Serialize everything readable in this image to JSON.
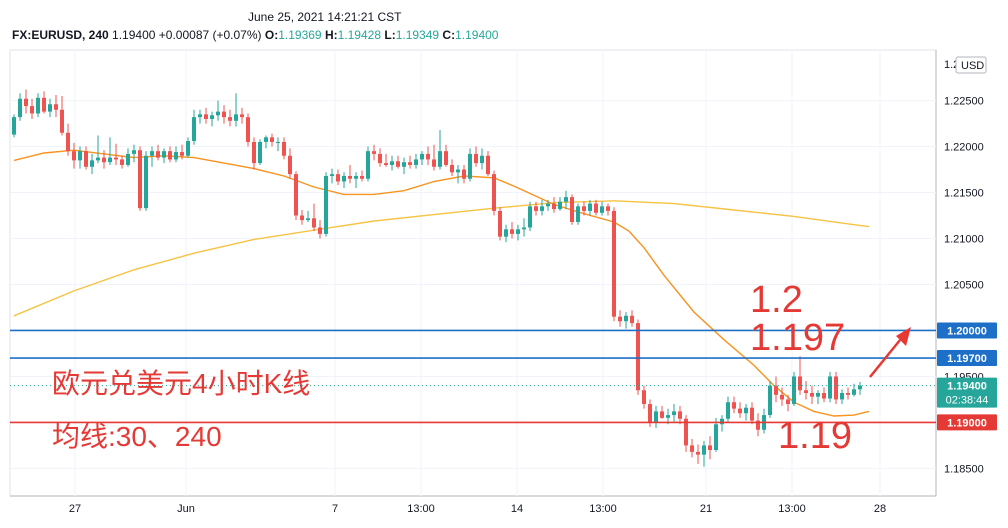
{
  "header": {
    "timestamp": "June 25, 2021 14:21:21 CST",
    "symbol": "FX:EURUSD, 240",
    "last": "1.19400",
    "change": "+0.00087 (+0.07%)",
    "o_label": "O:",
    "o_value": "1.19369",
    "h_label": "H:",
    "h_value": "1.19428",
    "l_label": "L:",
    "l_value": "1.19349",
    "c_label": "C:",
    "c_value": "1.19400"
  },
  "currency": "USD",
  "countdown": "02:38:44",
  "colors": {
    "up": "#26a69a",
    "down": "#ef5350",
    "ma30": "#f7931e",
    "ma240": "#f6c343",
    "blue_line": "#1e6fc8",
    "red_line": "#e53935",
    "annotation": "#e53935"
  },
  "annotations": {
    "title": "欧元兑美元4小时K线",
    "ma_note": "均线:30、240",
    "level_high": "1.2",
    "level_mid": "1.197",
    "level_low": "1.19"
  },
  "chart_data": {
    "type": "candlestick",
    "ylim": [
      1.182,
      1.2305
    ],
    "x_ticks": [
      "27",
      "Jun",
      "7",
      "13:00",
      "14",
      "13:00",
      "21",
      "13:00",
      "28"
    ],
    "y_ticks": [
      "1.22500",
      "1.22000",
      "1.21500",
      "1.21000",
      "1.20500",
      "1.19500",
      "1.18500"
    ],
    "price_tags": [
      {
        "label": "1.20000",
        "value": 1.2,
        "style": "blue"
      },
      {
        "label": "1.19700",
        "value": 1.197,
        "style": "blue"
      },
      {
        "label": "1.19400",
        "value": 1.194,
        "style": "green"
      },
      {
        "label": "1.19000",
        "value": 1.19,
        "style": "red"
      }
    ],
    "horizontal_lines": [
      {
        "value": 1.2,
        "color": "blue"
      },
      {
        "value": 1.197,
        "color": "blue"
      },
      {
        "value": 1.19,
        "color": "red"
      }
    ],
    "last_price": 1.194,
    "ma30": [
      [
        0,
        1.2185
      ],
      [
        30,
        1.2193
      ],
      [
        60,
        1.2196
      ],
      [
        90,
        1.2192
      ],
      [
        120,
        1.2188
      ],
      [
        150,
        1.219
      ],
      [
        180,
        1.2188
      ],
      [
        210,
        1.2182
      ],
      [
        240,
        1.2176
      ],
      [
        270,
        1.2168
      ],
      [
        300,
        1.2156
      ],
      [
        330,
        1.2148
      ],
      [
        360,
        1.2148
      ],
      [
        390,
        1.2152
      ],
      [
        420,
        1.2162
      ],
      [
        450,
        1.2168
      ],
      [
        480,
        1.2166
      ],
      [
        500,
        1.2157
      ],
      [
        520,
        1.2147
      ],
      [
        540,
        1.2137
      ],
      [
        570,
        1.2127
      ],
      [
        600,
        1.2118
      ],
      [
        615,
        1.2108
      ],
      [
        630,
        1.209
      ],
      [
        650,
        1.206
      ],
      [
        680,
        1.202
      ],
      [
        710,
        1.199
      ],
      [
        740,
        1.1962
      ],
      [
        760,
        1.194
      ],
      [
        780,
        1.1922
      ],
      [
        800,
        1.1912
      ],
      [
        820,
        1.1907
      ],
      [
        840,
        1.1908
      ],
      [
        855,
        1.1912
      ]
    ],
    "ma240": [
      [
        0,
        1.2016
      ],
      [
        60,
        1.2043
      ],
      [
        120,
        1.2066
      ],
      [
        180,
        1.2084
      ],
      [
        240,
        1.2099
      ],
      [
        300,
        1.2109
      ],
      [
        360,
        1.2119
      ],
      [
        420,
        1.2126
      ],
      [
        480,
        1.2133
      ],
      [
        540,
        1.2139
      ],
      [
        600,
        1.2141
      ],
      [
        660,
        1.2138
      ],
      [
        720,
        1.2131
      ],
      [
        780,
        1.2124
      ],
      [
        840,
        1.2115
      ],
      [
        855,
        1.2113
      ]
    ],
    "candles": [
      [
        1.2213,
        1.2235,
        1.221,
        1.2232
      ],
      [
        1.2232,
        1.2258,
        1.2228,
        1.2252
      ],
      [
        1.2252,
        1.2262,
        1.2236,
        1.2244
      ],
      [
        1.2244,
        1.2252,
        1.223,
        1.2236
      ],
      [
        1.2236,
        1.2258,
        1.2232,
        1.2253
      ],
      [
        1.2253,
        1.226,
        1.2236,
        1.2238
      ],
      [
        1.2238,
        1.2252,
        1.2232,
        1.2246
      ],
      [
        1.2246,
        1.2256,
        1.2232,
        1.224
      ],
      [
        1.224,
        1.2255,
        1.2212,
        1.2215
      ],
      [
        1.2215,
        1.2225,
        1.219,
        1.2195
      ],
      [
        1.2195,
        1.2204,
        1.2176,
        1.2185
      ],
      [
        1.2185,
        1.22,
        1.2176,
        1.2195
      ],
      [
        1.2195,
        1.22,
        1.2175,
        1.2178
      ],
      [
        1.2178,
        1.2192,
        1.217,
        1.2185
      ],
      [
        1.2185,
        1.2212,
        1.2182,
        1.2188
      ],
      [
        1.2188,
        1.2196,
        1.2176,
        1.2183
      ],
      [
        1.2183,
        1.221,
        1.218,
        1.2188
      ],
      [
        1.2188,
        1.2203,
        1.218,
        1.2186
      ],
      [
        1.2186,
        1.219,
        1.2176,
        1.218
      ],
      [
        1.218,
        1.2198,
        1.2178,
        1.2192
      ],
      [
        1.2192,
        1.2202,
        1.2183,
        1.2196
      ],
      [
        1.2196,
        1.22,
        1.213,
        1.2133
      ],
      [
        1.2133,
        1.2195,
        1.213,
        1.219
      ],
      [
        1.219,
        1.22,
        1.2178,
        1.2195
      ],
      [
        1.2195,
        1.2202,
        1.2185,
        1.2188
      ],
      [
        1.2188,
        1.2198,
        1.2182,
        1.2195
      ],
      [
        1.2195,
        1.22,
        1.2183,
        1.2186
      ],
      [
        1.2186,
        1.22,
        1.2183,
        1.2194
      ],
      [
        1.2194,
        1.2202,
        1.2186,
        1.219
      ],
      [
        1.219,
        1.221,
        1.2188,
        1.2206
      ],
      [
        1.2206,
        1.224,
        1.2202,
        1.2232
      ],
      [
        1.2232,
        1.224,
        1.2225,
        1.2235
      ],
      [
        1.2235,
        1.2242,
        1.2225,
        1.223
      ],
      [
        1.223,
        1.2238,
        1.2222,
        1.2234
      ],
      [
        1.2234,
        1.225,
        1.2228,
        1.2238
      ],
      [
        1.2238,
        1.2245,
        1.2225,
        1.2232
      ],
      [
        1.2232,
        1.224,
        1.2222,
        1.2228
      ],
      [
        1.2228,
        1.2258,
        1.2222,
        1.2235
      ],
      [
        1.2235,
        1.2242,
        1.2225,
        1.2232
      ],
      [
        1.2232,
        1.2236,
        1.22,
        1.2205
      ],
      [
        1.2205,
        1.221,
        1.2175,
        1.2182
      ],
      [
        1.2182,
        1.2208,
        1.218,
        1.2205
      ],
      [
        1.2205,
        1.2212,
        1.2198,
        1.221
      ],
      [
        1.221,
        1.2214,
        1.22,
        1.2205
      ],
      [
        1.2205,
        1.221,
        1.2195,
        1.2205
      ],
      [
        1.2205,
        1.221,
        1.2186,
        1.219
      ],
      [
        1.219,
        1.2198,
        1.2165,
        1.217
      ],
      [
        1.217,
        1.2173,
        1.212,
        1.2125
      ],
      [
        1.2125,
        1.2131,
        1.2115,
        1.212
      ],
      [
        1.212,
        1.213,
        1.2118,
        1.2122
      ],
      [
        1.2122,
        1.2138,
        1.2108,
        1.2112
      ],
      [
        1.2112,
        1.212,
        1.21,
        1.2105
      ],
      [
        1.2105,
        1.2172,
        1.2102,
        1.2168
      ],
      [
        1.2168,
        1.2176,
        1.216,
        1.217
      ],
      [
        1.217,
        1.2175,
        1.2158,
        1.2162
      ],
      [
        1.2162,
        1.2172,
        1.2155,
        1.2168
      ],
      [
        1.2168,
        1.218,
        1.216,
        1.2165
      ],
      [
        1.2165,
        1.2172,
        1.2155,
        1.2168
      ],
      [
        1.2168,
        1.2174,
        1.2162,
        1.2165
      ],
      [
        1.2165,
        1.22,
        1.2162,
        1.2195
      ],
      [
        1.2195,
        1.2202,
        1.2185,
        1.2192
      ],
      [
        1.2192,
        1.2198,
        1.2178,
        1.2182
      ],
      [
        1.2182,
        1.2192,
        1.2178,
        1.218
      ],
      [
        1.218,
        1.219,
        1.2174,
        1.2184
      ],
      [
        1.2184,
        1.219,
        1.2176,
        1.2178
      ],
      [
        1.2178,
        1.2188,
        1.217,
        1.2183
      ],
      [
        1.2183,
        1.219,
        1.2176,
        1.218
      ],
      [
        1.218,
        1.2192,
        1.2176,
        1.2186
      ],
      [
        1.2186,
        1.2195,
        1.218,
        1.2192
      ],
      [
        1.2192,
        1.22,
        1.218,
        1.2186
      ],
      [
        1.2186,
        1.2202,
        1.2174,
        1.2178
      ],
      [
        1.2178,
        1.2218,
        1.2175,
        1.2195
      ],
      [
        1.2195,
        1.2202,
        1.2178,
        1.218
      ],
      [
        1.218,
        1.2186,
        1.2168,
        1.2172
      ],
      [
        1.2172,
        1.218,
        1.216,
        1.2175
      ],
      [
        1.2175,
        1.218,
        1.216,
        1.2165
      ],
      [
        1.2165,
        1.2198,
        1.2162,
        1.2192
      ],
      [
        1.2192,
        1.22,
        1.2178,
        1.2182
      ],
      [
        1.2182,
        1.2198,
        1.2175,
        1.219
      ],
      [
        1.219,
        1.2195,
        1.2168,
        1.217
      ],
      [
        1.217,
        1.2174,
        1.2125,
        1.213
      ],
      [
        1.213,
        1.2134,
        1.2098,
        1.2102
      ],
      [
        1.2102,
        1.2115,
        1.2096,
        1.211
      ],
      [
        1.211,
        1.2118,
        1.21,
        1.2105
      ],
      [
        1.2105,
        1.2115,
        1.2098,
        1.211
      ],
      [
        1.211,
        1.2122,
        1.2102,
        1.2112
      ],
      [
        1.2112,
        1.214,
        1.2108,
        1.2135
      ],
      [
        1.2135,
        1.214,
        1.2125,
        1.213
      ],
      [
        1.213,
        1.2142,
        1.2125,
        1.2135
      ],
      [
        1.2135,
        1.2142,
        1.213,
        1.2138
      ],
      [
        1.2138,
        1.2145,
        1.2128,
        1.2132
      ],
      [
        1.2132,
        1.2145,
        1.213,
        1.214
      ],
      [
        1.214,
        1.2152,
        1.2132,
        1.2145
      ],
      [
        1.2145,
        1.2148,
        1.2115,
        1.2118
      ],
      [
        1.2118,
        1.2138,
        1.2115,
        1.2135
      ],
      [
        1.2135,
        1.214,
        1.2125,
        1.213
      ],
      [
        1.213,
        1.2142,
        1.2125,
        1.2138
      ],
      [
        1.2138,
        1.2142,
        1.2125,
        1.2128
      ],
      [
        1.2128,
        1.214,
        1.2125,
        1.2135
      ],
      [
        1.2135,
        1.2138,
        1.2125,
        1.213
      ],
      [
        1.213,
        1.2134,
        1.201,
        1.2015
      ],
      [
        1.2015,
        1.2022,
        1.2004,
        1.201
      ],
      [
        1.201,
        1.202,
        1.2002,
        1.2016
      ],
      [
        1.2016,
        1.2022,
        1.2004,
        1.2008
      ],
      [
        1.2008,
        1.2012,
        1.193,
        1.1935
      ],
      [
        1.1935,
        1.194,
        1.1915,
        1.192
      ],
      [
        1.192,
        1.1925,
        1.1895,
        1.19
      ],
      [
        1.19,
        1.1918,
        1.1894,
        1.1912
      ],
      [
        1.1912,
        1.1918,
        1.1904,
        1.1905
      ],
      [
        1.1905,
        1.1915,
        1.1898,
        1.1908
      ],
      [
        1.1908,
        1.192,
        1.19,
        1.1912
      ],
      [
        1.1912,
        1.1918,
        1.1898,
        1.1904
      ],
      [
        1.1904,
        1.1908,
        1.1868,
        1.1875
      ],
      [
        1.1875,
        1.1882,
        1.1862,
        1.1868
      ],
      [
        1.1868,
        1.1876,
        1.1855,
        1.1865
      ],
      [
        1.1865,
        1.188,
        1.1852,
        1.1875
      ],
      [
        1.1875,
        1.1885,
        1.186,
        1.187
      ],
      [
        1.187,
        1.1905,
        1.1868,
        1.1898
      ],
      [
        1.1898,
        1.1908,
        1.189,
        1.1904
      ],
      [
        1.1904,
        1.1928,
        1.19,
        1.1922
      ],
      [
        1.1922,
        1.1928,
        1.191,
        1.1915
      ],
      [
        1.1915,
        1.1922,
        1.1905,
        1.191
      ],
      [
        1.191,
        1.192,
        1.1902,
        1.1916
      ],
      [
        1.1916,
        1.1922,
        1.1898,
        1.1902
      ],
      [
        1.1902,
        1.191,
        1.1885,
        1.1892
      ],
      [
        1.1892,
        1.1915,
        1.1888,
        1.1908
      ],
      [
        1.1908,
        1.1945,
        1.1905,
        1.194
      ],
      [
        1.194,
        1.195,
        1.1922,
        1.193
      ],
      [
        1.193,
        1.1938,
        1.1918,
        1.1925
      ],
      [
        1.1925,
        1.193,
        1.1912,
        1.192
      ],
      [
        1.192,
        1.1955,
        1.1918,
        1.195
      ],
      [
        1.195,
        1.1972,
        1.193,
        1.1935
      ],
      [
        1.1935,
        1.1945,
        1.1925,
        1.1932
      ],
      [
        1.1932,
        1.194,
        1.192,
        1.1928
      ],
      [
        1.1928,
        1.1935,
        1.192,
        1.1932
      ],
      [
        1.1932,
        1.1938,
        1.1922,
        1.1926
      ],
      [
        1.1926,
        1.1955,
        1.1922,
        1.195
      ],
      [
        1.195,
        1.1955,
        1.192,
        1.1925
      ],
      [
        1.1925,
        1.1936,
        1.192,
        1.1932
      ],
      [
        1.1932,
        1.1938,
        1.1925,
        1.193
      ],
      [
        1.193,
        1.1942,
        1.1928,
        1.1936
      ],
      [
        1.1936,
        1.1944,
        1.193,
        1.194
      ]
    ]
  }
}
